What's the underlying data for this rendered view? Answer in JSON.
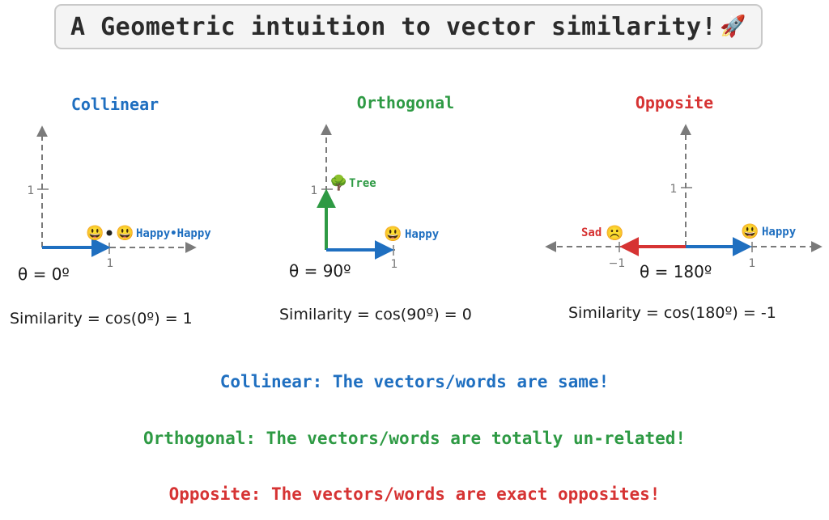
{
  "title": "A Geometric intuition to vector similarity!",
  "title_icon": "rocket-icon",
  "colors": {
    "blue": "#1f6fc0",
    "green": "#2e9a44",
    "red": "#d63333",
    "axis": "#7a7a7a",
    "text": "#1a1a1a"
  },
  "panels": {
    "collinear": {
      "heading": "Collinear",
      "vector_label": "Happy•Happy",
      "tick_x": "1",
      "tick_y": "1",
      "theta": "θ = 0º",
      "similarity": "Similarity = cos(0º) = 1"
    },
    "orthogonal": {
      "heading": "Orthogonal",
      "vector_x_label": "Happy",
      "vector_y_label": "Tree",
      "tick_x": "1",
      "tick_y": "1",
      "theta": "θ = 90º",
      "similarity": "Similarity = cos(90º) = 0"
    },
    "opposite": {
      "heading": "Opposite",
      "vector_pos_label": "Happy",
      "vector_neg_label": "Sad",
      "tick_x_pos": "1",
      "tick_x_neg": "−1",
      "tick_y": "1",
      "theta": "θ = 180º",
      "similarity": "Similarity = cos(180º) = -1"
    }
  },
  "summary": {
    "collinear": "Collinear: The vectors/words are same!",
    "orthogonal": "Orthogonal: The vectors/words are totally un-related!",
    "opposite": "Opposite: The vectors/words are exact opposites!"
  }
}
